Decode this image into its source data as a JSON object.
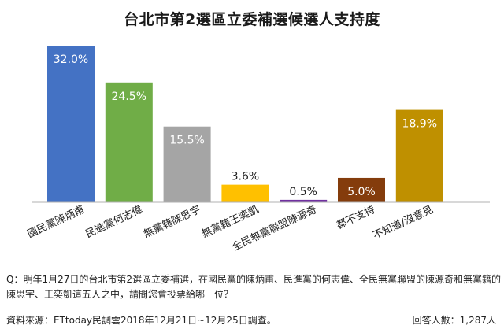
{
  "chart_data": {
    "type": "bar",
    "title": "台北市第2選區立委補選候選人支持度",
    "categories": [
      "國民黨陳炳甫",
      "民進黨何志偉",
      "無黨籍陳思宇",
      "無黨籍王奕凱",
      "全民無黨聯盟陳源奇",
      "都不支持",
      "不知道/沒意見"
    ],
    "values": [
      32.0,
      24.5,
      15.5,
      3.6,
      0.5,
      5.0,
      18.9
    ],
    "value_labels": [
      "32.0%",
      "24.5%",
      "15.5%",
      "3.6%",
      "0.5%",
      "5.0%",
      "18.9%"
    ],
    "colors": [
      "#4472C4",
      "#70AD47",
      "#A5A5A5",
      "#FFC000",
      "#7030A0",
      "#843C0C",
      "#BF9000"
    ],
    "ylim": [
      0,
      33
    ],
    "grid": false,
    "legend": "none"
  },
  "question": "Q：明年1月27日的台北市第2選區立委補選，在國民黨的陳炳甫、民進黨的何志偉、全民無黨聯盟的陳源奇和無黨籍的陳思宇、王奕凱這五人之中，請問您會投票給哪一位？",
  "source": "資料來源：ETtoday民調雲2018年12月21日~12月25日調查。",
  "respondents": "回答人數：1,287人"
}
